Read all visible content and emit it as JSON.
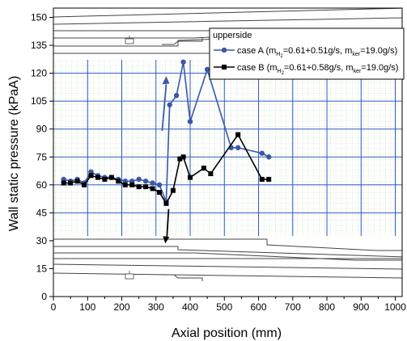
{
  "chart_data": {
    "type": "line",
    "xlabel": "Axial position (mm)",
    "ylabel": "Wall static pressure (kPaA)",
    "xlim": [
      0,
      1020
    ],
    "ylim": [
      0,
      155
    ],
    "xticks": [
      0,
      100,
      200,
      300,
      400,
      500,
      600,
      700,
      800,
      900,
      1000
    ],
    "yticks": [
      0,
      15,
      30,
      45,
      60,
      75,
      90,
      105,
      120,
      135,
      150
    ],
    "grid": "blue major gridlines with green dotted minor grid inside the combustor region",
    "legend": {
      "placement": "top-right",
      "title": "upperside",
      "entries": [
        {
          "prefix": "case A (m",
          "sub1": "H",
          "sub2": "2",
          "mid": "=0.61+0.51g/s, m",
          "sub3": "ker",
          "suffix": "=19.0g/s)"
        },
        {
          "prefix": "case B (m",
          "sub1": "H",
          "sub2": "2",
          "mid": "=0.61+0.58g/s, m",
          "sub3": "ker",
          "suffix": "=19.0g/s)"
        }
      ]
    },
    "series": [
      {
        "marker": "circle",
        "color": "#3a56a8",
        "x": [
          30,
          50,
          70,
          90,
          110,
          130,
          150,
          170,
          190,
          210,
          230,
          250,
          270,
          290,
          310,
          330,
          340,
          360,
          380,
          400,
          450,
          520,
          540,
          610,
          630
        ],
        "y": [
          63,
          62,
          63,
          61,
          67,
          65,
          64,
          64,
          63,
          62,
          62,
          63,
          62,
          61,
          60,
          51,
          103,
          108,
          126,
          94,
          122,
          80,
          80,
          77,
          75
        ]
      },
      {
        "marker": "square",
        "color": "#000000",
        "x": [
          30,
          50,
          70,
          90,
          110,
          130,
          150,
          170,
          190,
          210,
          230,
          250,
          270,
          290,
          310,
          330,
          350,
          370,
          380,
          400,
          440,
          460,
          540,
          610,
          630
        ],
        "y": [
          61,
          61,
          62,
          60,
          65,
          64,
          63,
          64,
          62,
          60,
          60,
          59,
          59,
          58,
          56,
          50,
          57,
          74,
          75,
          64,
          69,
          66,
          87,
          63,
          63
        ]
      }
    ]
  }
}
